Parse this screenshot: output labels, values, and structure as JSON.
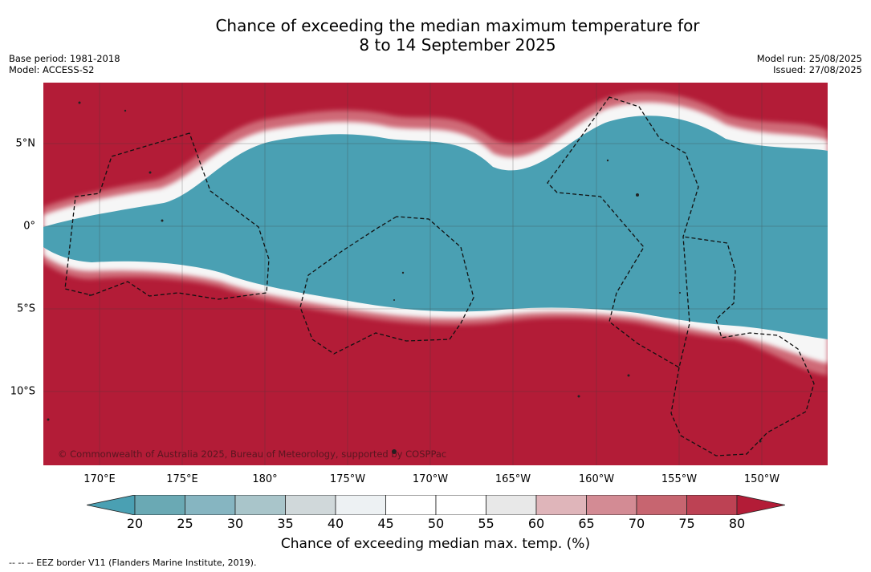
{
  "title_line1": "Chance of exceeding the median maximum temperature for",
  "title_line2": "8 to 14 September 2025",
  "base_period": "Base period: 1981-2018",
  "model": "Model: ACCESS-S2",
  "model_run": "Model run: 25/08/2025",
  "issued": "Issued: 27/08/2025",
  "copyright": "© Commonwealth of Australia 2025, Bureau of Meteorology, supported by COSPPac",
  "footnote": "-- -- -- EEZ border V11 (Flanders Marine Institute, 2019).",
  "colorbar": {
    "label": "Chance of exceeding median max. temp. (%)",
    "ticks": [
      "20",
      "25",
      "30",
      "35",
      "40",
      "45",
      "50",
      "55",
      "60",
      "65",
      "70",
      "75",
      "80"
    ],
    "colors": [
      "#6aa9b4",
      "#86b5c1",
      "#a9c5ca",
      "#d0d8da",
      "#edf1f3",
      "#ffffff",
      "#ffffff",
      "#e8e8e8",
      "#dfb5ba",
      "#d38b94",
      "#c76570",
      "#bd4254"
    ],
    "low_extend_color": "#4aa0b3",
    "high_extend_color": "#b31c37"
  },
  "map": {
    "lon_labels": [
      "170°E",
      "175°E",
      "180°",
      "175°W",
      "170°W",
      "165°W",
      "160°W",
      "155°W",
      "150°W"
    ],
    "lat_labels": [
      "5°N",
      "0°",
      "5°S",
      "10°S"
    ],
    "hot_color": "#b31c37",
    "cool_color": "#4aa0b3"
  }
}
